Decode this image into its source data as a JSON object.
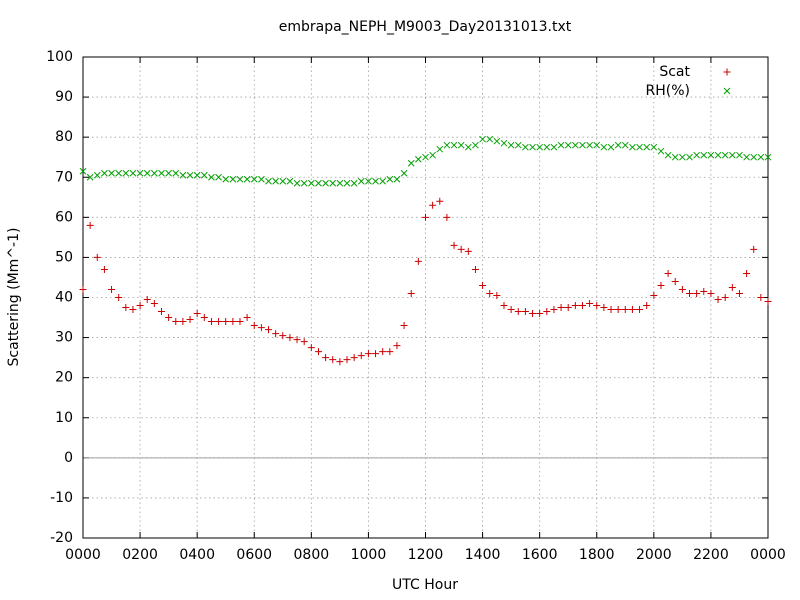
{
  "chart_data": {
    "type": "scatter",
    "title": "embrapa_NEPH_M9003_Day20131013.txt",
    "x_label": "UTC Hour",
    "y_label": "Scattering (Mm^-1)",
    "xlim": [
      0,
      24
    ],
    "xticks": [
      {
        "value": 0,
        "label": "0000"
      },
      {
        "value": 2,
        "label": "0200"
      },
      {
        "value": 4,
        "label": "0400"
      },
      {
        "value": 6,
        "label": "0600"
      },
      {
        "value": 8,
        "label": "0800"
      },
      {
        "value": 10,
        "label": "1000"
      },
      {
        "value": 12,
        "label": "1200"
      },
      {
        "value": 14,
        "label": "1400"
      },
      {
        "value": 16,
        "label": "1600"
      },
      {
        "value": 18,
        "label": "1800"
      },
      {
        "value": 20,
        "label": "2000"
      },
      {
        "value": 22,
        "label": "2200"
      },
      {
        "value": 24,
        "label": "0000"
      }
    ],
    "ylim": [
      -20,
      100
    ],
    "yticks": [
      -20,
      -10,
      0,
      10,
      20,
      30,
      40,
      50,
      60,
      70,
      80,
      90,
      100
    ],
    "grid": true,
    "zero_axis": true,
    "legend": "top-right",
    "x": [
      0,
      0.25,
      0.5,
      0.75,
      1,
      1.25,
      1.5,
      1.75,
      2,
      2.25,
      2.5,
      2.75,
      3,
      3.25,
      3.5,
      3.75,
      4,
      4.25,
      4.5,
      4.75,
      5,
      5.25,
      5.5,
      5.75,
      6,
      6.25,
      6.5,
      6.75,
      7,
      7.25,
      7.5,
      7.75,
      8,
      8.25,
      8.5,
      8.75,
      9,
      9.25,
      9.5,
      9.75,
      10,
      10.25,
      10.5,
      10.75,
      11,
      11.25,
      11.5,
      11.75,
      12,
      12.25,
      12.5,
      12.75,
      13,
      13.25,
      13.5,
      13.75,
      14,
      14.25,
      14.5,
      14.75,
      15,
      15.25,
      15.5,
      15.75,
      16,
      16.25,
      16.5,
      16.75,
      17,
      17.25,
      17.5,
      17.75,
      18,
      18.25,
      18.5,
      18.75,
      19,
      19.25,
      19.5,
      19.75,
      20,
      20.25,
      20.5,
      20.75,
      21,
      21.25,
      21.5,
      21.75,
      22,
      22.25,
      22.5,
      22.75,
      23,
      23.25,
      23.5,
      23.75,
      24
    ],
    "series": [
      {
        "name": "Scat",
        "color": "#cc0000",
        "marker": "plus",
        "values": [
          42,
          58,
          50,
          47,
          42,
          40,
          37.5,
          37,
          38,
          39.5,
          38.5,
          36.5,
          35,
          34,
          34,
          34.5,
          36,
          35,
          34,
          34,
          34,
          34,
          34,
          35,
          33,
          32.5,
          32,
          31,
          30.5,
          30,
          29.5,
          29,
          27.5,
          26.5,
          25,
          24.5,
          24,
          24.5,
          25,
          25.5,
          26,
          26,
          26.5,
          26.5,
          28,
          33,
          41,
          49,
          60,
          63,
          64,
          60,
          53,
          52,
          51.5,
          47,
          43,
          41,
          40.5,
          38,
          37,
          36.5,
          36.5,
          36,
          36,
          36.5,
          37,
          37.5,
          37.5,
          38,
          38,
          38.5,
          38,
          37.5,
          37,
          37,
          37,
          37,
          37,
          38,
          40.5,
          43,
          46,
          44,
          42,
          41,
          41,
          41.5,
          41,
          39.5,
          40,
          42.5,
          41,
          46,
          52,
          40,
          39
        ]
      },
      {
        "name": "RH(%)",
        "color": "#00a000",
        "marker": "cross",
        "values": [
          71.5,
          70,
          70.5,
          71,
          71,
          71,
          71,
          71,
          71,
          71,
          71,
          71,
          71,
          71,
          70.5,
          70.5,
          70.5,
          70.5,
          70,
          70,
          69.5,
          69.5,
          69.5,
          69.5,
          69.5,
          69.5,
          69,
          69,
          69,
          69,
          68.5,
          68.5,
          68.5,
          68.5,
          68.5,
          68.5,
          68.5,
          68.5,
          68.5,
          69,
          69,
          69,
          69,
          69.5,
          69.5,
          71,
          73.5,
          74.5,
          75,
          75.5,
          77,
          78,
          78,
          78,
          77.5,
          78,
          79.5,
          79.5,
          79,
          78.5,
          78,
          78,
          77.5,
          77.5,
          77.5,
          77.5,
          77.5,
          78,
          78,
          78,
          78,
          78,
          78,
          77.5,
          77.5,
          78,
          78,
          77.5,
          77.5,
          77.5,
          77.5,
          76.5,
          75.5,
          75,
          75,
          75,
          75.5,
          75.5,
          75.5,
          75.5,
          75.5,
          75.5,
          75.5,
          75,
          75,
          75,
          75
        ]
      }
    ]
  }
}
